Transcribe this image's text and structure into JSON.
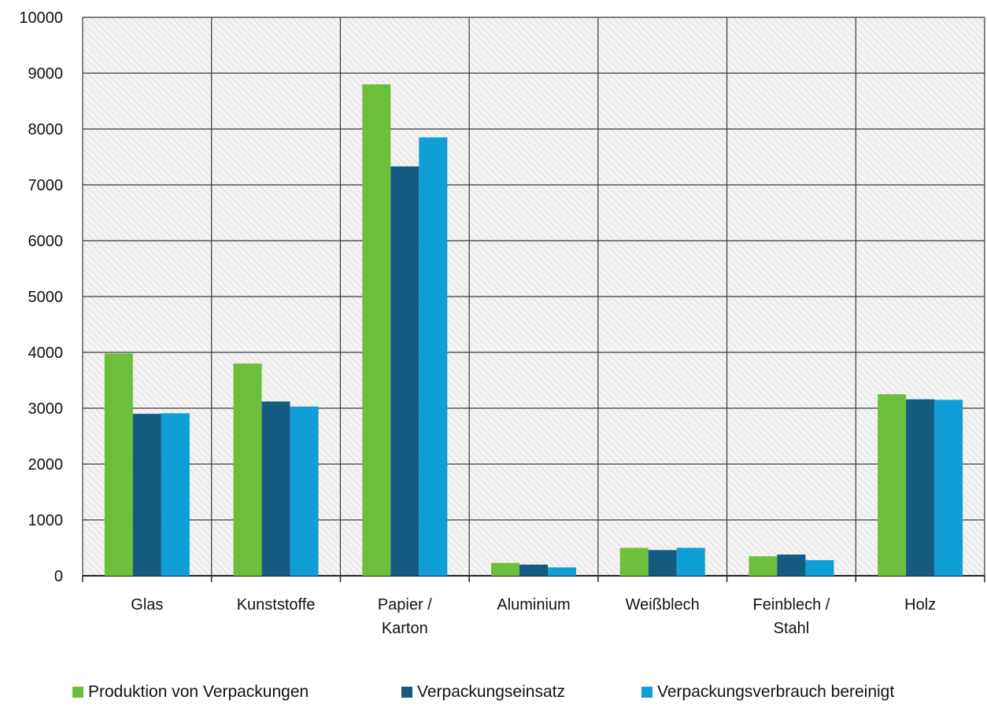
{
  "chart_data": {
    "type": "bar",
    "categories": [
      [
        "Glas"
      ],
      [
        "Kunststoffe"
      ],
      [
        "Papier /",
        "Karton"
      ],
      [
        "Aluminium"
      ],
      [
        "Weißblech"
      ],
      [
        "Feinblech /",
        "Stahl"
      ],
      [
        "Holz"
      ]
    ],
    "series": [
      {
        "name": "Produktion von Verpackungen",
        "color": "#6cbf3a",
        "values": [
          3980,
          3800,
          8800,
          230,
          500,
          350,
          3250
        ]
      },
      {
        "name": "Verpackungseinsatz",
        "color": "#145b82",
        "values": [
          2900,
          3120,
          7330,
          200,
          460,
          380,
          3160
        ]
      },
      {
        "name": "Verpackungsverbrauch bereinigt",
        "color": "#109ed6",
        "values": [
          2910,
          3030,
          7850,
          150,
          500,
          280,
          3150
        ]
      }
    ],
    "ylim": [
      0,
      10000
    ],
    "yticks": [
      0,
      1000,
      2000,
      3000,
      4000,
      5000,
      6000,
      7000,
      8000,
      9000,
      10000
    ],
    "grid": true,
    "legend_position": "bottom",
    "title": "",
    "xlabel": "",
    "ylabel": ""
  }
}
